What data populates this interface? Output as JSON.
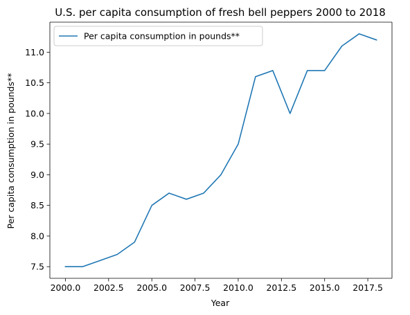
{
  "chart_data": {
    "type": "line",
    "title": "U.S. per capita consumption of fresh bell peppers 2000 to 2018",
    "xlabel": "Year",
    "ylabel": "Per capita consumption in pounds**",
    "x": [
      2000,
      2001,
      2002,
      2003,
      2004,
      2005,
      2006,
      2007,
      2008,
      2009,
      2010,
      2011,
      2012,
      2013,
      2014,
      2015,
      2016,
      2017,
      2018
    ],
    "series": [
      {
        "name": "Per capita consumption in pounds**",
        "color": "#1f77b4",
        "values": [
          7.5,
          7.5,
          7.6,
          7.7,
          7.9,
          8.5,
          8.7,
          8.6,
          8.7,
          9.0,
          9.5,
          10.6,
          10.7,
          10.0,
          10.7,
          10.7,
          11.1,
          11.3,
          11.2
        ]
      }
    ],
    "xlim": [
      1999.1,
      2018.9
    ],
    "ylim": [
      7.31,
      11.49
    ],
    "xticks": [
      2000,
      2002.5,
      2005,
      2007.5,
      2010,
      2012.5,
      2015,
      2017.5
    ],
    "xtick_labels": [
      "2000.0",
      "2002.5",
      "2005.0",
      "2007.5",
      "2010.0",
      "2012.5",
      "2015.0",
      "2017.5"
    ],
    "yticks": [
      7.5,
      8.0,
      8.5,
      9.0,
      9.5,
      10.0,
      10.5,
      11.0
    ],
    "ytick_labels": [
      "7.5",
      "8.0",
      "8.5",
      "9.0",
      "9.5",
      "10.0",
      "10.5",
      "11.0"
    ],
    "grid": false,
    "legend_position": "upper-left"
  }
}
